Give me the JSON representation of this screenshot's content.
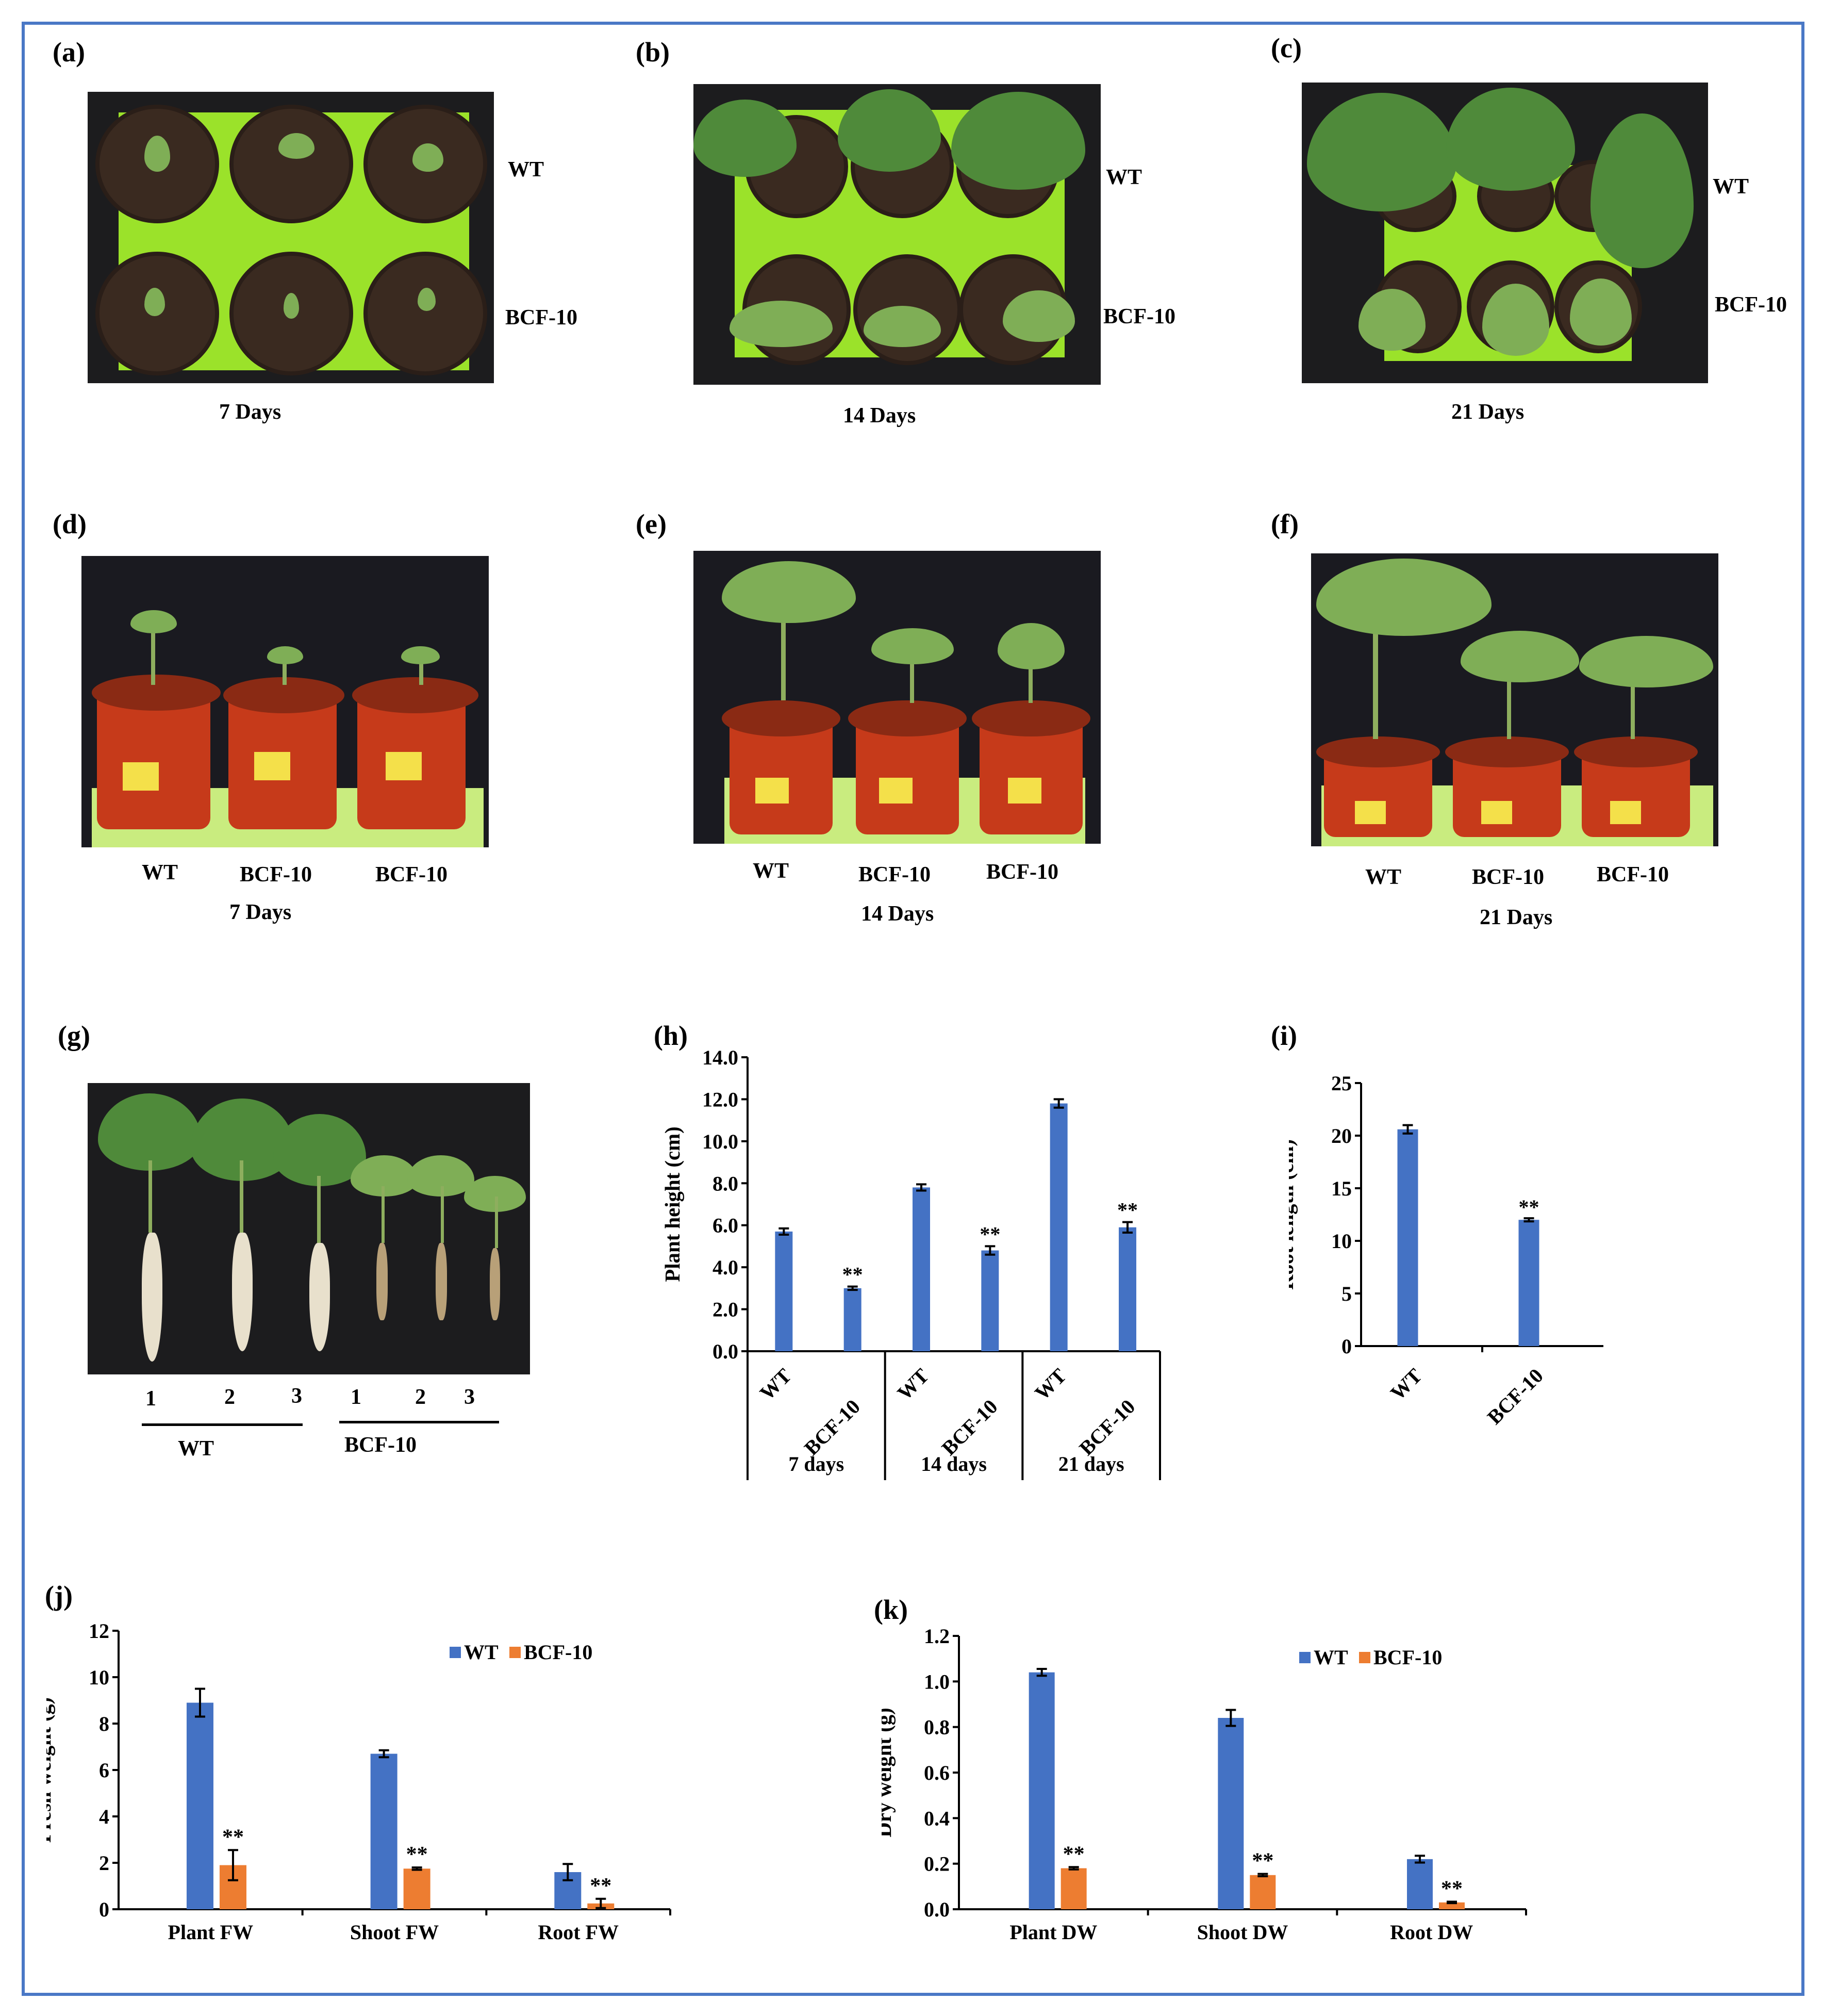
{
  "panels": {
    "a": {
      "label": "(a)",
      "wt": "WT",
      "bcf": "BCF-10",
      "caption": "7 Days"
    },
    "b": {
      "label": "(b)",
      "wt": "WT",
      "bcf": "BCF-10",
      "caption": "14  Days"
    },
    "c": {
      "label": "(c)",
      "wt": "WT",
      "bcf": "BCF-10",
      "caption": "21 Days"
    },
    "d": {
      "label": "(d)",
      "pots": [
        "WT",
        "BCF-10",
        "BCF-10"
      ],
      "caption": "7 Days"
    },
    "e": {
      "label": "(e)",
      "pots": [
        "WT",
        "BCF-10",
        "BCF-10"
      ],
      "caption": "14  Days"
    },
    "f": {
      "label": "(f)",
      "pots": [
        "WT",
        "BCF-10",
        "BCF-10"
      ],
      "caption": "21 Days"
    },
    "g": {
      "label": "(g)",
      "numbers": [
        "1",
        "2",
        "3",
        "1",
        "2",
        "3"
      ],
      "group1": "WT",
      "group2": "BCF-10"
    },
    "h": {
      "label": "(h)"
    },
    "i": {
      "label": "(i)"
    },
    "j": {
      "label": "(j)"
    },
    "k": {
      "label": "(k)"
    }
  },
  "chart_data": [
    {
      "id": "h",
      "type": "bar",
      "ylabel": "Plant height (cm)",
      "ylim": [
        0,
        14
      ],
      "yticks": [
        "0.0",
        "2.0",
        "4.0",
        "6.0",
        "8.0",
        "10.0",
        "12.0",
        "14.0"
      ],
      "groups": [
        {
          "name": "7 days",
          "categories": [
            "WT",
            "BCF-10"
          ],
          "values": [
            5.7,
            3.0
          ],
          "errors": [
            0.15,
            0.08
          ]
        },
        {
          "name": "14 days",
          "categories": [
            "WT",
            "BCF-10"
          ],
          "values": [
            7.8,
            4.8
          ],
          "errors": [
            0.15,
            0.2
          ]
        },
        {
          "name": "21 days",
          "categories": [
            "WT",
            "BCF-10"
          ],
          "values": [
            11.8,
            5.9
          ],
          "errors": [
            0.2,
            0.25
          ]
        }
      ],
      "significance": [
        "",
        "**",
        "",
        "**",
        "",
        "**"
      ],
      "color": "#4472c4"
    },
    {
      "id": "i",
      "type": "bar",
      "ylabel": "Root length (cm)",
      "ylim": [
        0,
        25
      ],
      "yticks": [
        "0",
        "5",
        "10",
        "15",
        "20",
        "25"
      ],
      "categories": [
        "WT",
        "BCF-10"
      ],
      "values": [
        20.6,
        12.0
      ],
      "errors": [
        0.4,
        0.15
      ],
      "significance": [
        "",
        "**"
      ],
      "color": "#4472c4"
    },
    {
      "id": "j",
      "type": "bar",
      "ylabel": "Fresh weight (g)",
      "ylim": [
        0,
        12
      ],
      "yticks": [
        "0",
        "2",
        "4",
        "6",
        "8",
        "10",
        "12"
      ],
      "categories": [
        "Plant FW",
        "Shoot FW",
        "Root FW"
      ],
      "series": [
        {
          "name": "WT",
          "values": [
            8.9,
            6.7,
            1.6
          ],
          "errors": [
            0.6,
            0.15,
            0.35
          ],
          "color": "#4472c4"
        },
        {
          "name": "BCF-10",
          "values": [
            1.9,
            1.75,
            0.25
          ],
          "errors": [
            0.65,
            0.05,
            0.2
          ],
          "color": "#ed7d31"
        }
      ],
      "significance": [
        "**",
        "**",
        "**"
      ],
      "legend": "top-right"
    },
    {
      "id": "k",
      "type": "bar",
      "ylabel": "Dry weight (g)",
      "ylim": [
        0,
        1.2
      ],
      "yticks": [
        "0.0",
        "0.2",
        "0.4",
        "0.6",
        "0.8",
        "1.0",
        "1.2"
      ],
      "categories": [
        "Plant DW",
        "Shoot DW",
        "Root DW"
      ],
      "series": [
        {
          "name": "WT",
          "values": [
            1.04,
            0.84,
            0.22
          ],
          "errors": [
            0.015,
            0.035,
            0.015
          ],
          "color": "#4472c4"
        },
        {
          "name": "BCF-10",
          "values": [
            0.18,
            0.15,
            0.03
          ],
          "errors": [
            0.005,
            0.005,
            0.003
          ],
          "color": "#ed7d31"
        }
      ],
      "significance": [
        "**",
        "**",
        "**"
      ],
      "legend": "top-right"
    }
  ]
}
